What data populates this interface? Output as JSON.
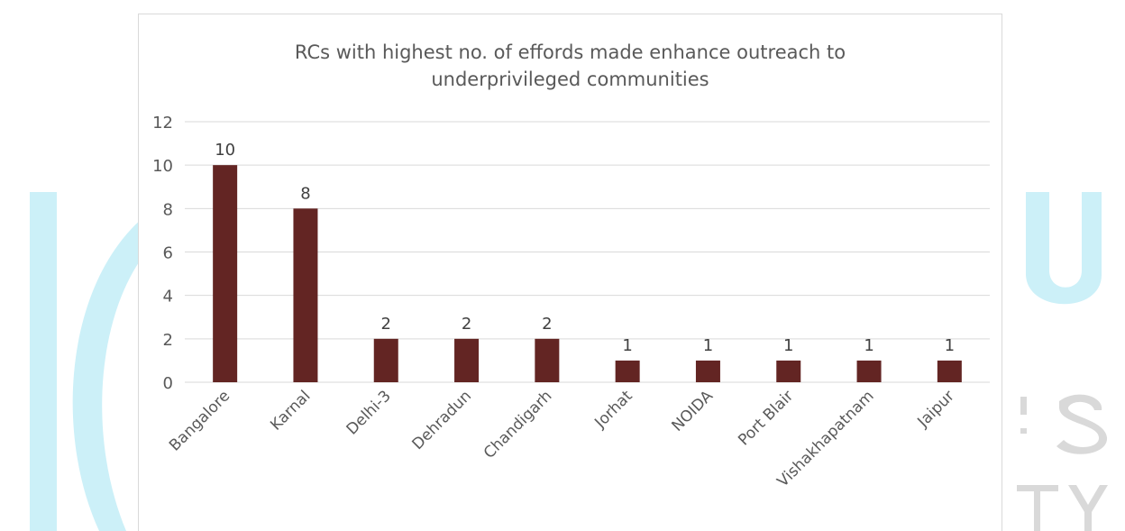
{
  "chart_data": {
    "type": "bar",
    "title_lines": [
      "RCs with highest no. of effords made enhance outreach to",
      "underprivileged communities"
    ],
    "categories": [
      "Bangalore",
      "Karnal",
      "Delhi-3",
      "Dehradun",
      "Chandigarh",
      "Jorhat",
      "NOIDA",
      "Port Blair",
      "Vishakhapatnam",
      "Jaipur"
    ],
    "values": [
      10,
      8,
      2,
      2,
      2,
      1,
      1,
      1,
      1,
      1
    ],
    "data_labels": [
      "10",
      "8",
      "2",
      "2",
      "2",
      "1",
      "1",
      "1",
      "1",
      "1"
    ],
    "yticks": [
      "0",
      "2",
      "4",
      "6",
      "8",
      "10",
      "12"
    ],
    "ylim": [
      0,
      12
    ],
    "grid": true,
    "legend": "none",
    "bar_color": "#632523",
    "grid_color": "#d9d9d9",
    "text_color": "#595959"
  },
  "background": {
    "watermark_color": "#ccf0f8"
  }
}
